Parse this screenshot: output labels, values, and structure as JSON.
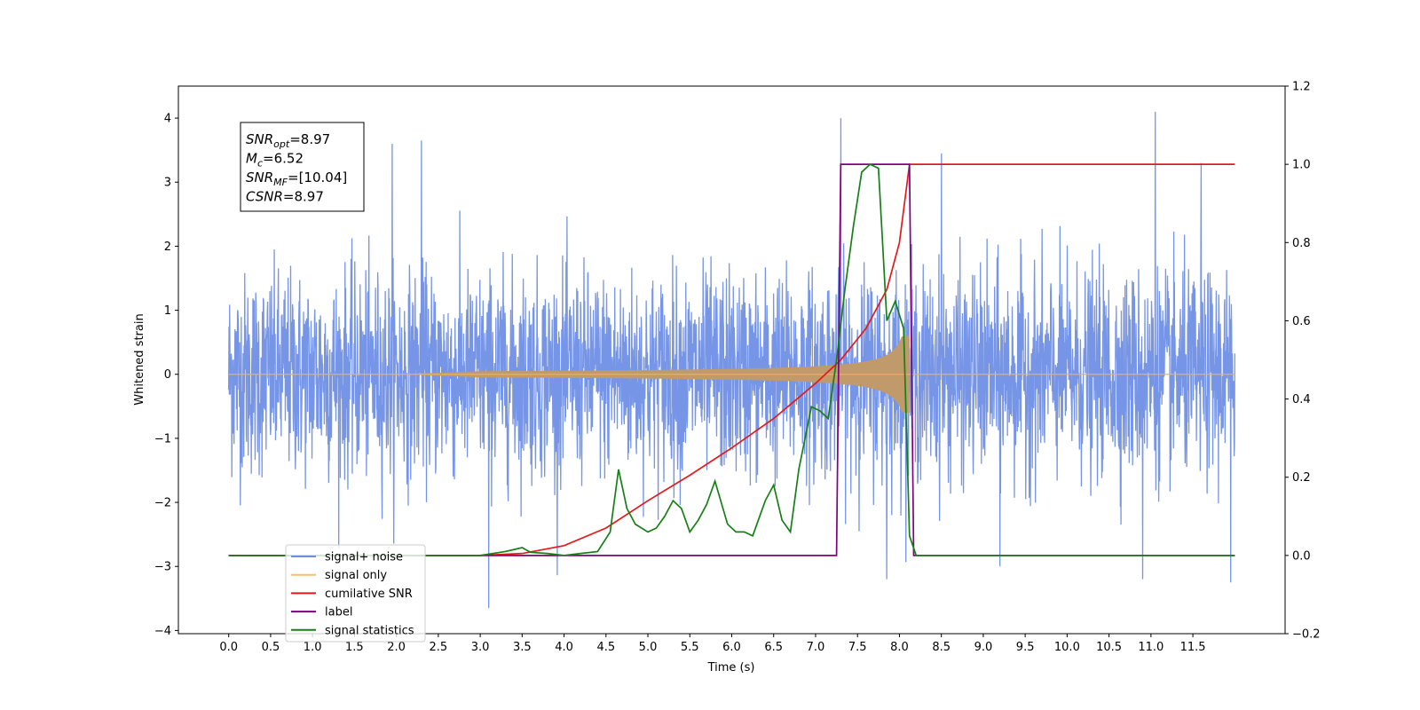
{
  "chart_data": {
    "type": "line",
    "xlabel": "Time (s)",
    "ylabel": "Whitened strain",
    "xlim": [
      -0.6,
      12.6
    ],
    "ylim_left": [
      -4.05,
      4.5
    ],
    "ylim_right": [
      -0.2,
      1.2
    ],
    "x_ticks": [
      0.0,
      0.5,
      1.0,
      1.5,
      2.0,
      2.5,
      3.0,
      3.5,
      4.0,
      4.5,
      5.0,
      5.5,
      6.0,
      6.5,
      7.0,
      7.5,
      8.0,
      8.5,
      9.0,
      9.5,
      10.0,
      10.5,
      11.0,
      11.5
    ],
    "x_tick_labels": [
      "0.0",
      "0.5",
      "1.0",
      "1.5",
      "2.0",
      "2.5",
      "3.0",
      "3.5",
      "4.0",
      "4.5",
      "5.0",
      "5.5",
      "6.0",
      "6.5",
      "7.0",
      "7.5",
      "8.0",
      "8.5",
      "9.0",
      "9.5",
      "10.0",
      "10.5",
      "11.0",
      "11.5"
    ],
    "y_left_ticks": [
      4,
      3,
      2,
      1,
      0,
      -1,
      -2,
      -3,
      -4
    ],
    "y_left_tick_labels": [
      "4",
      "3",
      "2",
      "1",
      "0",
      "−1",
      "−2",
      "−3",
      "−4"
    ],
    "y_right_ticks": [
      1.2,
      1.0,
      0.8,
      0.6,
      0.4,
      0.2,
      0.0,
      -0.2
    ],
    "y_right_tick_labels": [
      "1.2",
      "1.0",
      "0.8",
      "0.6",
      "0.4",
      "0.2",
      "0.0",
      "−0.2"
    ],
    "grid": false,
    "legend_position": "lower-left",
    "annotation": {
      "lines": [
        {
          "base": "SNR",
          "sub": "opt",
          "rest": "=8.97"
        },
        {
          "base": "M",
          "sub": "c",
          "rest": "=6.52"
        },
        {
          "base": "SNR",
          "sub": "MF",
          "rest": "=[10.04]"
        },
        {
          "base": "CSNR",
          "sub": "",
          "rest": "=8.97"
        }
      ]
    },
    "series": [
      {
        "name": "signal+ noise",
        "color": "#6f8fe6",
        "axis": "left",
        "kind": "noise",
        "t_start": 0.0,
        "t_end": 12.0,
        "amplitude_std": 0.78,
        "spikes": [
          [
            1.95,
            3.6
          ],
          [
            2.3,
            3.65
          ],
          [
            3.1,
            -3.65
          ],
          [
            7.3,
            4.0
          ],
          [
            8.5,
            3.45
          ],
          [
            11.05,
            4.1
          ],
          [
            11.6,
            3.3
          ],
          [
            11.95,
            -3.25
          ],
          [
            10.9,
            -3.2
          ],
          [
            7.85,
            -3.2
          ],
          [
            9.2,
            -3.0
          ]
        ]
      },
      {
        "name": "signal only",
        "color": "#f5b041",
        "axis": "left",
        "kind": "chirp",
        "t_start": 0.0,
        "t_end": 8.12,
        "t_merge": 8.12,
        "peak_amplitude": 0.6
      },
      {
        "name": "cumilative SNR",
        "color": "#e31a1c",
        "axis": "right",
        "x": [
          0.0,
          3.0,
          3.5,
          4.0,
          4.5,
          5.0,
          5.5,
          6.0,
          6.5,
          7.0,
          7.3,
          7.6,
          7.85,
          8.0,
          8.12,
          12.0
        ],
        "y": [
          0.0,
          0.0,
          0.005,
          0.025,
          0.07,
          0.14,
          0.205,
          0.275,
          0.35,
          0.44,
          0.5,
          0.58,
          0.68,
          0.8,
          1.0,
          1.0
        ]
      },
      {
        "name": "label",
        "color": "#800080",
        "axis": "right",
        "x": [
          0.0,
          7.25,
          7.3,
          8.12,
          8.17,
          12.0
        ],
        "y": [
          0.0,
          0.0,
          1.0,
          1.0,
          0.0,
          0.0
        ]
      },
      {
        "name": "signal statistics",
        "color": "#168016",
        "axis": "right",
        "x": [
          0.0,
          3.0,
          3.3,
          3.4,
          3.5,
          3.6,
          3.8,
          4.0,
          4.2,
          4.4,
          4.55,
          4.65,
          4.75,
          4.85,
          5.0,
          5.1,
          5.2,
          5.3,
          5.4,
          5.5,
          5.6,
          5.7,
          5.8,
          5.95,
          6.05,
          6.15,
          6.25,
          6.4,
          6.5,
          6.6,
          6.7,
          6.8,
          6.95,
          7.05,
          7.15,
          7.25,
          7.35,
          7.45,
          7.55,
          7.65,
          7.75,
          7.85,
          7.95,
          8.05,
          8.12,
          8.2,
          8.3,
          12.0
        ],
        "y": [
          0.0,
          0.0,
          0.01,
          0.015,
          0.02,
          0.008,
          0.005,
          0.0,
          0.005,
          0.01,
          0.06,
          0.22,
          0.12,
          0.08,
          0.06,
          0.07,
          0.1,
          0.14,
          0.12,
          0.06,
          0.09,
          0.13,
          0.19,
          0.08,
          0.06,
          0.06,
          0.05,
          0.14,
          0.18,
          0.09,
          0.06,
          0.22,
          0.38,
          0.37,
          0.35,
          0.5,
          0.68,
          0.84,
          0.98,
          1.0,
          0.99,
          0.6,
          0.65,
          0.58,
          0.05,
          0.0,
          0.0,
          0.0
        ]
      }
    ],
    "legend_entries": [
      {
        "label": "signal+ noise",
        "color": "#6f8fe6"
      },
      {
        "label": "signal only",
        "color": "#f5c06a"
      },
      {
        "label": "cumilative SNR",
        "color": "#e31a1c"
      },
      {
        "label": "label",
        "color": "#800080"
      },
      {
        "label": "signal statistics",
        "color": "#168016"
      }
    ]
  }
}
